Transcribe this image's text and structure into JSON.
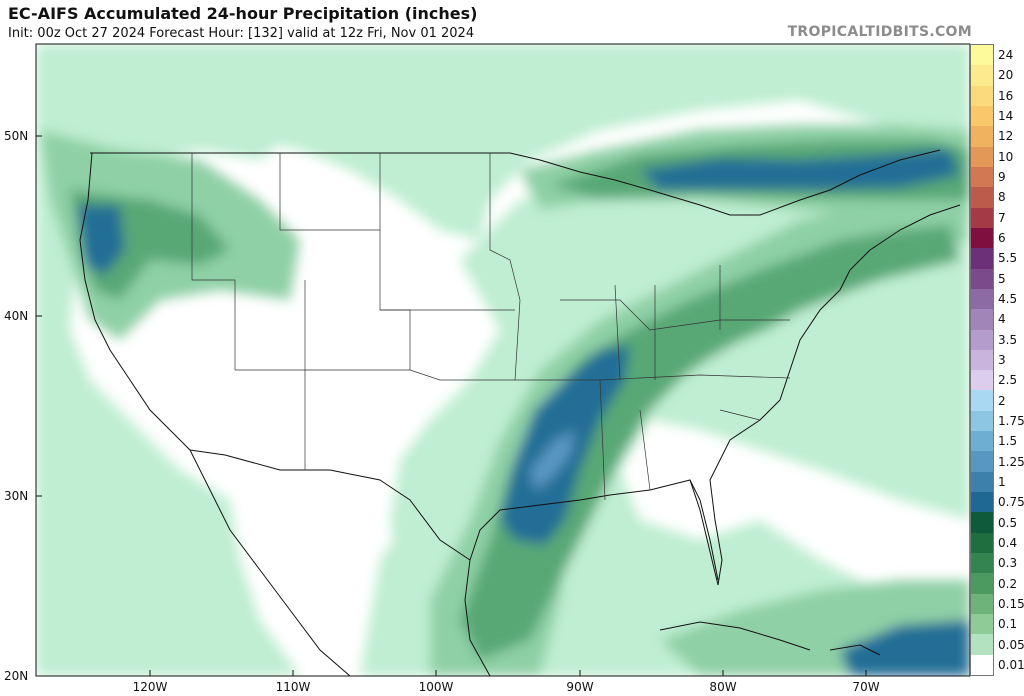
{
  "header": {
    "title": "EC-AIFS Accumulated 24-hour Precipitation (inches)",
    "subtitle": "Init: 00z Oct 27 2024   Forecast Hour: [132]   valid at 12z Fri, Nov 01 2024",
    "brand": "TROPICALTIDBITS.COM"
  },
  "map": {
    "lat_labels": [
      "50N",
      "40N",
      "30N",
      "20N"
    ],
    "lon_labels": [
      "120W",
      "110W",
      "100W",
      "90W",
      "80W",
      "70W"
    ]
  },
  "legend": {
    "items": [
      {
        "label": "24",
        "color": "#fdfa9c"
      },
      {
        "label": "20",
        "color": "#fcea8c"
      },
      {
        "label": "16",
        "color": "#fbda7c"
      },
      {
        "label": "14",
        "color": "#f8c86a"
      },
      {
        "label": "12",
        "color": "#f0b25e"
      },
      {
        "label": "10",
        "color": "#e49858"
      },
      {
        "label": "9",
        "color": "#d27852"
      },
      {
        "label": "8",
        "color": "#bc5a4c"
      },
      {
        "label": "7",
        "color": "#a33a46"
      },
      {
        "label": "6",
        "color": "#7e0f3e"
      },
      {
        "label": "5.5",
        "color": "#6b3078"
      },
      {
        "label": "5",
        "color": "#7a4a8a"
      },
      {
        "label": "4.5",
        "color": "#8c6aa2"
      },
      {
        "label": "4",
        "color": "#a184b8"
      },
      {
        "label": "3.5",
        "color": "#b49ccc"
      },
      {
        "label": "3",
        "color": "#c8b4dc"
      },
      {
        "label": "2.5",
        "color": "#ddcdec"
      },
      {
        "label": "2",
        "color": "#a8d8f2"
      },
      {
        "label": "1.75",
        "color": "#8cc6e2"
      },
      {
        "label": "1.5",
        "color": "#6eaed2"
      },
      {
        "label": "1.25",
        "color": "#5898c0"
      },
      {
        "label": "1",
        "color": "#3e80ac"
      },
      {
        "label": "0.75",
        "color": "#206894"
      },
      {
        "label": "0.5",
        "color": "#0e5a3a"
      },
      {
        "label": "0.4",
        "color": "#1e6e40"
      },
      {
        "label": "0.3",
        "color": "#33844e"
      },
      {
        "label": "0.2",
        "color": "#4c9a60"
      },
      {
        "label": "0.15",
        "color": "#6eb47a"
      },
      {
        "label": "0.1",
        "color": "#8fcb96"
      },
      {
        "label": "0.05",
        "color": "#b2e2c0"
      },
      {
        "label": "0.01",
        "color": "#ffffff"
      }
    ]
  },
  "colors": {
    "precip_light": "#bfeed2",
    "precip_med": "#8fd0a6",
    "precip_dark": "#58a876",
    "precip_darker": "#2e7c52",
    "precip_blue": "#236e96",
    "precip_blue_light": "#5a98c0"
  }
}
